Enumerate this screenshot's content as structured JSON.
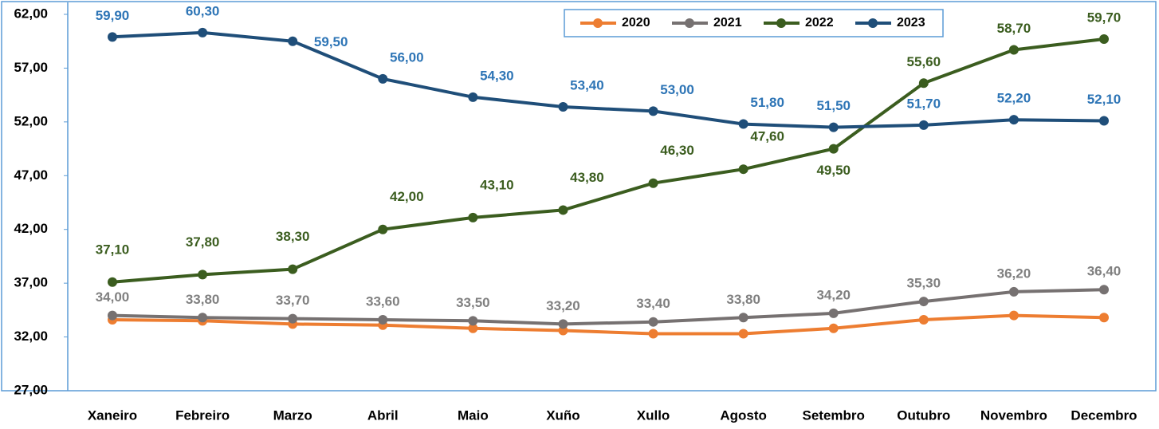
{
  "chart_data": {
    "type": "line",
    "categories": [
      "Xaneiro",
      "Febreiro",
      "Marzo",
      "Abril",
      "Maio",
      "Xuño",
      "Xullo",
      "Agosto",
      "Setembro",
      "Outubro",
      "Novembro",
      "Decembro"
    ],
    "series": [
      {
        "name": "2020",
        "color": "#ed7d31",
        "values": [
          33.6,
          33.5,
          33.2,
          33.1,
          32.8,
          32.6,
          32.3,
          32.3,
          32.8,
          33.6,
          34.0,
          33.8
        ]
      },
      {
        "name": "2021",
        "color": "#767171",
        "label_color": "#808080",
        "values": [
          34.0,
          33.8,
          33.7,
          33.6,
          33.5,
          33.2,
          33.4,
          33.8,
          34.2,
          35.3,
          36.2,
          36.4
        ],
        "value_labels": [
          "34,00",
          "33,80",
          "33,70",
          "33,60",
          "33,50",
          "33,20",
          "33,40",
          "33,80",
          "34,20",
          "35,30",
          "36,20",
          "36,40"
        ]
      },
      {
        "name": "2022",
        "color": "#3b5d1f",
        "label_color": "#3b5d1f",
        "values": [
          37.1,
          37.8,
          38.3,
          42.0,
          43.1,
          43.8,
          46.3,
          47.6,
          49.5,
          55.6,
          58.7,
          59.7
        ],
        "value_labels": [
          "37,10",
          "37,80",
          "38,30",
          "42,00",
          "43,10",
          "43,80",
          "46,30",
          "47,60",
          "49,50",
          "55,60",
          "58,70",
          "59,70"
        ]
      },
      {
        "name": "2023",
        "color": "#1f4e79",
        "label_color": "#2e75b6",
        "values": [
          59.9,
          60.3,
          59.5,
          56.0,
          54.3,
          53.4,
          53.0,
          51.8,
          51.5,
          51.7,
          52.2,
          52.1
        ],
        "value_labels": [
          "59,90",
          "60,30",
          "59,50",
          "56,00",
          "54,30",
          "53,40",
          "53,00",
          "51,80",
          "51,50",
          "51,70",
          "52,20",
          "52,10"
        ]
      }
    ],
    "ylim": [
      27,
      62
    ],
    "yticks": [
      {
        "value": 27,
        "label": "27,00"
      },
      {
        "value": 32,
        "label": "32,00"
      },
      {
        "value": 37,
        "label": "37,00"
      },
      {
        "value": 42,
        "label": "42,00"
      },
      {
        "value": 47,
        "label": "47,00"
      },
      {
        "value": 52,
        "label": "52,00"
      },
      {
        "value": 57,
        "label": "57,00"
      },
      {
        "value": 62,
        "label": "62,00"
      }
    ],
    "legend": "top-right"
  }
}
